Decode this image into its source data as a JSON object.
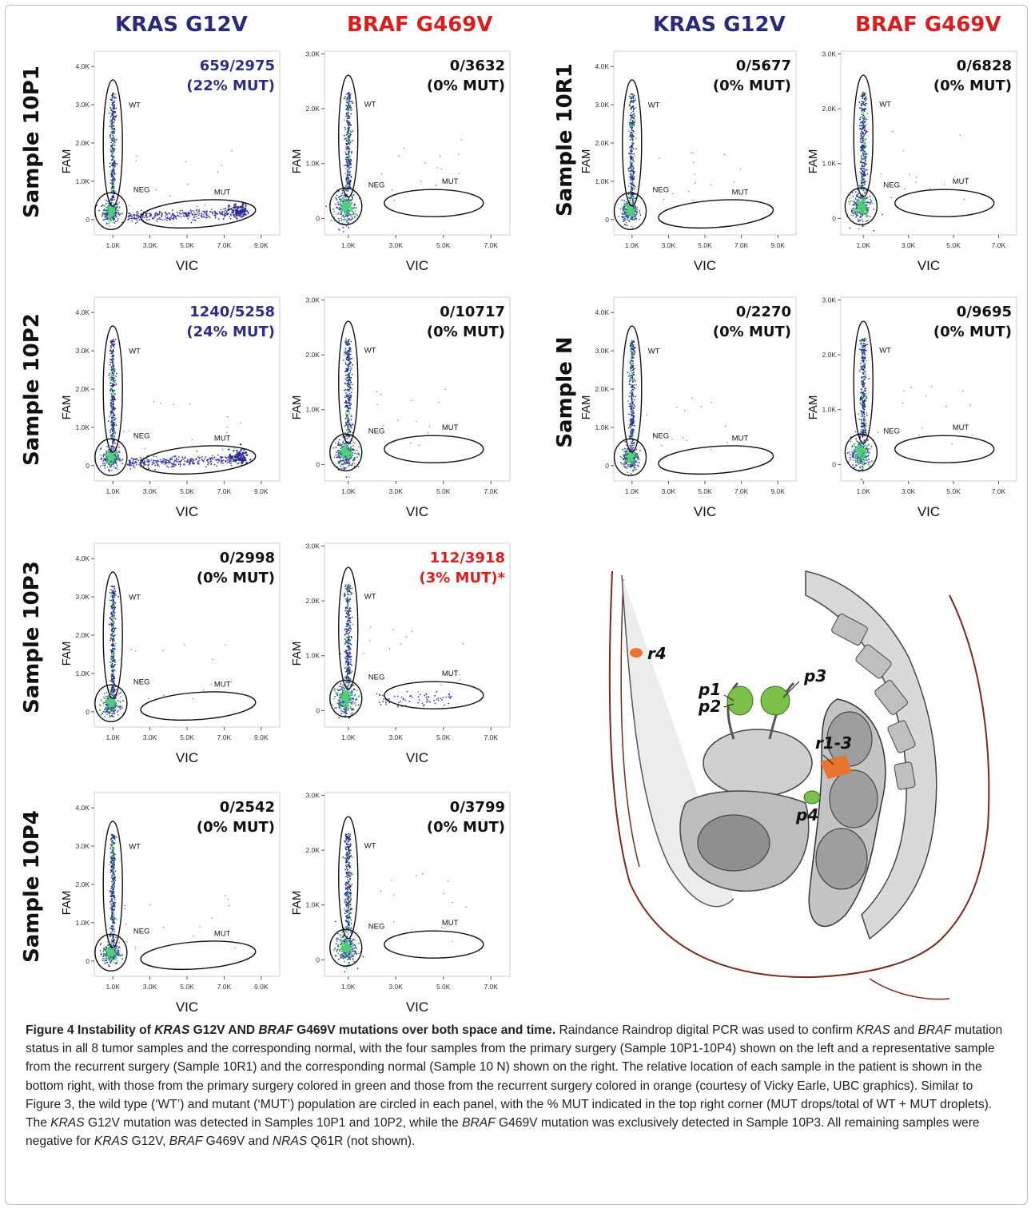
{
  "columns": {
    "left_kras": "KRAS G12V",
    "left_braf": "BRAF G469V",
    "right_kras": "KRAS G12V",
    "right_braf": "BRAF G469V"
  },
  "rows": {
    "10P1": "Sample 10P1",
    "10P2": "Sample 10P2",
    "10P3": "Sample 10P3",
    "10P4": "Sample 10P4",
    "10R1": "Sample 10R1",
    "N": "Sample N"
  },
  "colors": {
    "kras_title": "#2a2a7a",
    "braf_title": "#d81e1e",
    "mut_positive": "#2d2d88",
    "mut_positive_braf": "#e01b1b",
    "droplets": "#3a3aa0",
    "droplet_dense": "#2fae5a"
  },
  "chart_data": [
    {
      "id": "10P1_KRAS",
      "type": "scatter",
      "row": "10P1",
      "assay": "KRAS G12V",
      "xlabel": "VIC",
      "ylabel": "FAM",
      "xticks": [
        "1.0K",
        "3.0K",
        "5.0K",
        "7.0K",
        "9.0K"
      ],
      "yticks": [
        "0",
        "1.0K",
        "2.0K",
        "3.0K",
        "4.0K"
      ],
      "xlim": [
        0,
        10000
      ],
      "ylim": [
        -400,
        4400
      ],
      "gates": [
        "WT",
        "NEG",
        "MUT"
      ],
      "counts": "659/2975",
      "pct": "(22% MUT)",
      "mut_count": 659,
      "total": 2975,
      "mut_pct": 22,
      "positive": true
    },
    {
      "id": "10P1_BRAF",
      "type": "scatter",
      "row": "10P1",
      "assay": "BRAF G469V",
      "xlabel": "VIC",
      "ylabel": "FAM",
      "xticks": [
        "1.0K",
        "3.0K",
        "5.0K",
        "7.0K"
      ],
      "yticks": [
        "0",
        "1.0K",
        "2.0K",
        "3.0K"
      ],
      "xlim": [
        0,
        7800
      ],
      "ylim": [
        -300,
        3050
      ],
      "gates": [
        "WT",
        "NEG",
        "MUT"
      ],
      "counts": "0/3632",
      "pct": "(0% MUT)",
      "mut_count": 0,
      "total": 3632,
      "mut_pct": 0,
      "positive": false
    },
    {
      "id": "10P2_KRAS",
      "type": "scatter",
      "row": "10P2",
      "assay": "KRAS G12V",
      "xlabel": "VIC",
      "ylabel": "FAM",
      "xticks": [
        "1.0K",
        "3.0K",
        "5.0K",
        "7.0K",
        "9.0K"
      ],
      "yticks": [
        "0",
        "1.0K",
        "2.0K",
        "3.0K",
        "4.0K"
      ],
      "xlim": [
        0,
        10000
      ],
      "ylim": [
        -400,
        4400
      ],
      "gates": [
        "WT",
        "NEG",
        "MUT"
      ],
      "counts": "1240/5258",
      "pct": "(24% MUT)",
      "mut_count": 1240,
      "total": 5258,
      "mut_pct": 24,
      "positive": true
    },
    {
      "id": "10P2_BRAF",
      "type": "scatter",
      "row": "10P2",
      "assay": "BRAF G469V",
      "xlabel": "VIC",
      "ylabel": "FAM",
      "xticks": [
        "1.0K",
        "3.0K",
        "5.0K",
        "7.0K"
      ],
      "yticks": [
        "0",
        "1.0K",
        "2.0K",
        "3.0K"
      ],
      "xlim": [
        0,
        7800
      ],
      "ylim": [
        -300,
        3050
      ],
      "gates": [
        "WT",
        "NEG",
        "MUT"
      ],
      "counts": "0/10717",
      "pct": "(0% MUT)",
      "mut_count": 0,
      "total": 10717,
      "mut_pct": 0,
      "positive": false
    },
    {
      "id": "10P3_KRAS",
      "type": "scatter",
      "row": "10P3",
      "assay": "KRAS G12V",
      "xlabel": "VIC",
      "ylabel": "FAM",
      "xticks": [
        "1.0K",
        "3.0K",
        "5.0K",
        "7.0K",
        "9.0K"
      ],
      "yticks": [
        "0",
        "1.0K",
        "2.0K",
        "3.0K",
        "4.0K"
      ],
      "xlim": [
        0,
        10000
      ],
      "ylim": [
        -400,
        4400
      ],
      "gates": [
        "WT",
        "NEG",
        "MUT"
      ],
      "counts": "0/2998",
      "pct": "(0% MUT)",
      "mut_count": 0,
      "total": 2998,
      "mut_pct": 0,
      "positive": false
    },
    {
      "id": "10P3_BRAF",
      "type": "scatter",
      "row": "10P3",
      "assay": "BRAF G469V",
      "xlabel": "VIC",
      "ylabel": "FAM",
      "xticks": [
        "1.0K",
        "3.0K",
        "5.0K",
        "7.0K"
      ],
      "yticks": [
        "0",
        "1.0K",
        "2.0K",
        "3.0K"
      ],
      "xlim": [
        0,
        7800
      ],
      "ylim": [
        -300,
        3050
      ],
      "gates": [
        "WT",
        "NEG",
        "MUT"
      ],
      "counts": "112/3918",
      "pct": "(3% MUT)*",
      "mut_count": 112,
      "total": 3918,
      "mut_pct": 3,
      "positive": true
    },
    {
      "id": "10P4_KRAS",
      "type": "scatter",
      "row": "10P4",
      "assay": "KRAS G12V",
      "xlabel": "VIC",
      "ylabel": "FAM",
      "xticks": [
        "1.0K",
        "3.0K",
        "5.0K",
        "7.0K",
        "9.0K"
      ],
      "yticks": [
        "0",
        "1.0K",
        "2.0K",
        "3.0K",
        "4.0K"
      ],
      "xlim": [
        0,
        10000
      ],
      "ylim": [
        -400,
        4400
      ],
      "gates": [
        "WT",
        "NEG",
        "MUT"
      ],
      "counts": "0/2542",
      "pct": "(0% MUT)",
      "mut_count": 0,
      "total": 2542,
      "mut_pct": 0,
      "positive": false
    },
    {
      "id": "10P4_BRAF",
      "type": "scatter",
      "row": "10P4",
      "assay": "BRAF G469V",
      "xlabel": "VIC",
      "ylabel": "FAM",
      "xticks": [
        "1.0K",
        "3.0K",
        "5.0K",
        "7.0K"
      ],
      "yticks": [
        "0",
        "1.0K",
        "2.0K",
        "3.0K"
      ],
      "xlim": [
        0,
        7800
      ],
      "ylim": [
        -300,
        3050
      ],
      "gates": [
        "WT",
        "NEG",
        "MUT"
      ],
      "counts": "0/3799",
      "pct": "(0% MUT)",
      "mut_count": 0,
      "total": 3799,
      "mut_pct": 0,
      "positive": false
    },
    {
      "id": "10R1_KRAS",
      "type": "scatter",
      "row": "10R1",
      "assay": "KRAS G12V",
      "xlabel": "VIC",
      "ylabel": "FAM",
      "xticks": [
        "1.0K",
        "3.0K",
        "5.0K",
        "7.0K",
        "9.0K"
      ],
      "yticks": [
        "0",
        "1.0K",
        "2.0K",
        "3.0K",
        "4.0K"
      ],
      "xlim": [
        0,
        10000
      ],
      "ylim": [
        -400,
        4400
      ],
      "gates": [
        "WT",
        "NEG",
        "MUT"
      ],
      "counts": "0/5677",
      "pct": "(0% MUT)",
      "mut_count": 0,
      "total": 5677,
      "mut_pct": 0,
      "positive": false
    },
    {
      "id": "10R1_BRAF",
      "type": "scatter",
      "row": "10R1",
      "assay": "BRAF G469V",
      "xlabel": "VIC",
      "ylabel": "FAM",
      "xticks": [
        "1.0K",
        "3.0K",
        "5.0K",
        "7.0K"
      ],
      "yticks": [
        "0",
        "1.0K",
        "2.0K",
        "3.0K"
      ],
      "xlim": [
        0,
        7800
      ],
      "ylim": [
        -300,
        3050
      ],
      "gates": [
        "WT",
        "NEG",
        "MUT"
      ],
      "counts": "0/6828",
      "pct": "(0% MUT)",
      "mut_count": 0,
      "total": 6828,
      "mut_pct": 0,
      "positive": false
    },
    {
      "id": "N_KRAS",
      "type": "scatter",
      "row": "N",
      "assay": "KRAS G12V",
      "xlabel": "VIC",
      "ylabel": "FAM",
      "xticks": [
        "1.0K",
        "3.0K",
        "5.0K",
        "7.0K",
        "9.0K"
      ],
      "yticks": [
        "0",
        "1.0K",
        "2.0K",
        "3.0K",
        "4.0K"
      ],
      "xlim": [
        0,
        10000
      ],
      "ylim": [
        -400,
        4400
      ],
      "gates": [
        "WT",
        "NEG",
        "MUT"
      ],
      "counts": "0/2270",
      "pct": "(0% MUT)",
      "mut_count": 0,
      "total": 2270,
      "mut_pct": 0,
      "positive": false
    },
    {
      "id": "N_BRAF",
      "type": "scatter",
      "row": "N",
      "assay": "BRAF G469V",
      "xlabel": "VIC",
      "ylabel": "FAM",
      "xticks": [
        "1.0K",
        "3.0K",
        "5.0K",
        "7.0K"
      ],
      "yticks": [
        "0",
        "1.0K",
        "2.0K",
        "3.0K"
      ],
      "xlim": [
        0,
        7800
      ],
      "ylim": [
        -300,
        3050
      ],
      "gates": [
        "WT",
        "NEG",
        "MUT"
      ],
      "counts": "0/9695",
      "pct": "(0% MUT)",
      "mut_count": 0,
      "total": 9695,
      "mut_pct": 0,
      "positive": false
    }
  ],
  "anatomy": {
    "labels": [
      "r4",
      "p1",
      "p2",
      "p3",
      "r1-3",
      "p4"
    ],
    "colors": {
      "primary": "#7cc04b",
      "recurrent": "#e8742e"
    }
  },
  "caption": {
    "t1": "Figure 4 Instability of ",
    "t2": "KRAS",
    "t3": " G12V AND ",
    "t4": "BRAF",
    "t5": " G469V mutations over both space and time.",
    "b1": " Raindance Raindrop digital PCR was used to confirm ",
    "b2": "KRAS",
    "b3": " and ",
    "b4": "BRAF",
    "b5": " mutation status in all 8 tumor samples and the corresponding normal, with the four samples from the primary surgery (Sample 10P1-10P4) shown on the left and a representative sample from the recurrent surgery (Sample 10R1) and the corresponding normal (Sample 10 N) shown on the right. The relative location of each sample in the patient is shown in the bottom right, with those from the primary surgery colored in green and those from the recurrent surgery colored in orange (courtesy of Vicky Earle, UBC graphics). Similar to Figure 3, the wild type (‘WT’) and mutant (‘MUT’) population are circled in each panel, with the % MUT indicated in the top right corner (MUT drops/total of WT + MUT droplets). The ",
    "b6": "KRAS",
    "b7": " G12V mutation was detected in Samples 10P1 and 10P2, while the ",
    "b8": "BRAF",
    "b9": " G469V mutation was exclusively detected in Sample 10P3. All remaining samples were negative for ",
    "b10": "KRAS",
    "b11": " G12V, ",
    "b12": "BRAF",
    "b13": " G469V and ",
    "b14": "NRAS",
    "b15": " Q61R (not shown)."
  }
}
